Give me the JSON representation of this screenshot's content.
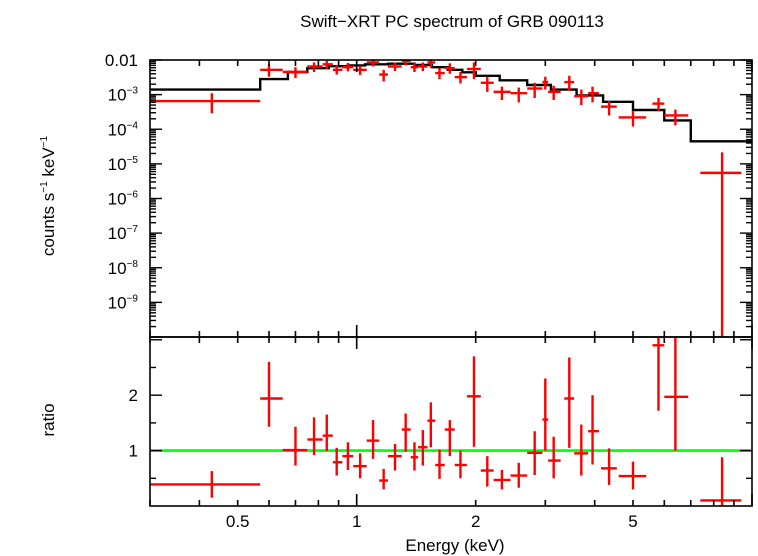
{
  "chart_data": [
    {
      "type": "scatter",
      "panel": "spectrum",
      "title": "Swift−XRT PC spectrum of GRB 090113",
      "ylabel_parts": [
        "counts s",
        "−1",
        " keV",
        "−1"
      ],
      "xscale": "log",
      "yscale": "log",
      "xlim": [
        0.3,
        10
      ],
      "ylim": [
        1e-10,
        0.01
      ],
      "yticks": [
        {
          "v": 0.01,
          "base": "0.01",
          "exp": ""
        },
        {
          "v": 0.001,
          "base": "10",
          "exp": "−3"
        },
        {
          "v": 0.0001,
          "base": "10",
          "exp": "−4"
        },
        {
          "v": 1e-05,
          "base": "10",
          "exp": "−5"
        },
        {
          "v": 1e-06,
          "base": "10",
          "exp": "−6"
        },
        {
          "v": 1e-07,
          "base": "10",
          "exp": "−7"
        },
        {
          "v": 1e-08,
          "base": "10",
          "exp": "−8"
        },
        {
          "v": 1e-09,
          "base": "10",
          "exp": "−9"
        }
      ],
      "data_color": "#ff0000",
      "model_color": "#000000",
      "model_step": [
        {
          "x0": 0.3,
          "x1": 0.57,
          "y": 0.0014
        },
        {
          "x0": 0.57,
          "x1": 0.67,
          "y": 0.0028
        },
        {
          "x0": 0.67,
          "x1": 0.75,
          "y": 0.0045
        },
        {
          "x0": 0.75,
          "x1": 0.85,
          "y": 0.0058
        },
        {
          "x0": 0.85,
          "x1": 0.95,
          "y": 0.0066
        },
        {
          "x0": 0.95,
          "x1": 1.05,
          "y": 0.007
        },
        {
          "x0": 1.05,
          "x1": 1.2,
          "y": 0.0075
        },
        {
          "x0": 1.2,
          "x1": 1.4,
          "y": 0.0078
        },
        {
          "x0": 1.4,
          "x1": 1.55,
          "y": 0.0072
        },
        {
          "x0": 1.55,
          "x1": 1.7,
          "y": 0.0062
        },
        {
          "x0": 1.7,
          "x1": 1.85,
          "y": 0.0052
        },
        {
          "x0": 1.85,
          "x1": 2.0,
          "y": 0.0044
        },
        {
          "x0": 2.0,
          "x1": 2.3,
          "y": 0.0035
        },
        {
          "x0": 2.3,
          "x1": 2.7,
          "y": 0.0026
        },
        {
          "x0": 2.7,
          "x1": 3.1,
          "y": 0.0019
        },
        {
          "x0": 3.1,
          "x1": 3.6,
          "y": 0.0014
        },
        {
          "x0": 3.6,
          "x1": 4.2,
          "y": 0.00095
        },
        {
          "x0": 4.2,
          "x1": 5.0,
          "y": 0.00062
        },
        {
          "x0": 5.0,
          "x1": 6.0,
          "y": 0.00036
        },
        {
          "x0": 6.0,
          "x1": 7.0,
          "y": 0.00018
        },
        {
          "x0": 7.0,
          "x1": 10.0,
          "y": 4.5e-05
        }
      ],
      "points": [
        {
          "x": 0.43,
          "xlo": 0.3,
          "xhi": 0.57,
          "y": 0.00065,
          "ylo": 0.00029,
          "yhi": 0.0011
        },
        {
          "x": 0.6,
          "xlo": 0.57,
          "xhi": 0.65,
          "y": 0.0052,
          "ylo": 0.0033,
          "yhi": 0.0075
        },
        {
          "x": 0.7,
          "xlo": 0.65,
          "xhi": 0.75,
          "y": 0.0045,
          "ylo": 0.003,
          "yhi": 0.0062
        },
        {
          "x": 0.78,
          "xlo": 0.75,
          "xhi": 0.82,
          "y": 0.0065,
          "ylo": 0.0045,
          "yhi": 0.0085
        },
        {
          "x": 0.84,
          "xlo": 0.82,
          "xhi": 0.87,
          "y": 0.0075,
          "ylo": 0.0055,
          "yhi": 0.0095
        },
        {
          "x": 0.89,
          "xlo": 0.87,
          "xhi": 0.92,
          "y": 0.0052,
          "ylo": 0.0038,
          "yhi": 0.0072
        },
        {
          "x": 0.95,
          "xlo": 0.92,
          "xhi": 0.98,
          "y": 0.0062,
          "ylo": 0.0047,
          "yhi": 0.0082
        },
        {
          "x": 1.02,
          "xlo": 0.98,
          "xhi": 1.06,
          "y": 0.0052,
          "ylo": 0.0037,
          "yhi": 0.0068
        },
        {
          "x": 1.1,
          "xlo": 1.06,
          "xhi": 1.14,
          "y": 0.0085,
          "ylo": 0.0065,
          "yhi": 0.0105
        },
        {
          "x": 1.17,
          "xlo": 1.14,
          "xhi": 1.2,
          "y": 0.0038,
          "ylo": 0.0024,
          "yhi": 0.0052
        },
        {
          "x": 1.25,
          "xlo": 1.2,
          "xhi": 1.3,
          "y": 0.0065,
          "ylo": 0.0048,
          "yhi": 0.0085
        },
        {
          "x": 1.33,
          "xlo": 1.3,
          "xhi": 1.37,
          "y": 0.0095,
          "ylo": 0.007,
          "yhi": 0.0115
        },
        {
          "x": 1.4,
          "xlo": 1.37,
          "xhi": 1.43,
          "y": 0.0062,
          "ylo": 0.0045,
          "yhi": 0.0082
        },
        {
          "x": 1.47,
          "xlo": 1.43,
          "xhi": 1.51,
          "y": 0.0065,
          "ylo": 0.0048,
          "yhi": 0.0085
        },
        {
          "x": 1.54,
          "xlo": 1.51,
          "xhi": 1.58,
          "y": 0.0085,
          "ylo": 0.006,
          "yhi": 0.011
        },
        {
          "x": 1.62,
          "xlo": 1.58,
          "xhi": 1.67,
          "y": 0.0042,
          "ylo": 0.0028,
          "yhi": 0.0058
        },
        {
          "x": 1.72,
          "xlo": 1.67,
          "xhi": 1.77,
          "y": 0.0058,
          "ylo": 0.004,
          "yhi": 0.008
        },
        {
          "x": 1.83,
          "xlo": 1.77,
          "xhi": 1.9,
          "y": 0.0032,
          "ylo": 0.0021,
          "yhi": 0.0045
        },
        {
          "x": 1.98,
          "xlo": 1.9,
          "xhi": 2.06,
          "y": 0.0055,
          "ylo": 0.0028,
          "yhi": 0.0085
        },
        {
          "x": 2.14,
          "xlo": 2.06,
          "xhi": 2.22,
          "y": 0.0022,
          "ylo": 0.0012,
          "yhi": 0.0033
        },
        {
          "x": 2.33,
          "xlo": 2.22,
          "xhi": 2.45,
          "y": 0.0012,
          "ylo": 0.0007,
          "yhi": 0.0017
        },
        {
          "x": 2.57,
          "xlo": 2.45,
          "xhi": 2.7,
          "y": 0.0011,
          "ylo": 0.0006,
          "yhi": 0.0016
        },
        {
          "x": 2.82,
          "xlo": 2.7,
          "xhi": 2.95,
          "y": 0.0015,
          "ylo": 0.0008,
          "yhi": 0.0022
        },
        {
          "x": 3.0,
          "xlo": 2.95,
          "xhi": 3.05,
          "y": 0.0023,
          "ylo": 0.0014,
          "yhi": 0.0033
        },
        {
          "x": 3.15,
          "xlo": 3.05,
          "xhi": 3.28,
          "y": 0.0012,
          "ylo": 0.0007,
          "yhi": 0.0018
        },
        {
          "x": 3.45,
          "xlo": 3.35,
          "xhi": 3.55,
          "y": 0.0023,
          "ylo": 0.0013,
          "yhi": 0.0035
        },
        {
          "x": 3.7,
          "xlo": 3.55,
          "xhi": 3.85,
          "y": 0.0009,
          "ylo": 0.0005,
          "yhi": 0.0014
        },
        {
          "x": 3.95,
          "xlo": 3.85,
          "xhi": 4.1,
          "y": 0.0011,
          "ylo": 0.0006,
          "yhi": 0.0017
        },
        {
          "x": 4.35,
          "xlo": 4.15,
          "xhi": 4.55,
          "y": 0.00045,
          "ylo": 0.00025,
          "yhi": 0.00065
        },
        {
          "x": 5.0,
          "xlo": 4.6,
          "xhi": 5.4,
          "y": 0.00022,
          "ylo": 0.00012,
          "yhi": 0.00033
        },
        {
          "x": 5.8,
          "xlo": 5.6,
          "xhi": 6.0,
          "y": 0.00055,
          "ylo": 0.00033,
          "yhi": 0.0008
        },
        {
          "x": 6.4,
          "xlo": 6.0,
          "xhi": 6.9,
          "y": 0.00025,
          "ylo": 0.00013,
          "yhi": 0.00037
        },
        {
          "x": 8.4,
          "xlo": 7.4,
          "xhi": 9.4,
          "y": 5.5e-06,
          "ylo": 1e-10,
          "yhi": 2.15e-05
        }
      ]
    },
    {
      "type": "scatter",
      "panel": "ratio",
      "xlabel": "Energy (keV)",
      "ylabel": "ratio",
      "xscale": "log",
      "xlim": [
        0.3,
        10
      ],
      "ylim": [
        0,
        3.05
      ],
      "xticks": [
        {
          "v": 0.5,
          "label": "0.5"
        },
        {
          "v": 1,
          "label": "1"
        },
        {
          "v": 2,
          "label": "2"
        },
        {
          "v": 5,
          "label": "5"
        }
      ],
      "yticks": [
        {
          "v": 1,
          "label": "1"
        },
        {
          "v": 2,
          "label": "2"
        }
      ],
      "reference_line": {
        "y": 1,
        "color": "#00ff00"
      },
      "data_color": "#ff0000",
      "points": [
        {
          "x": 0.43,
          "xlo": 0.3,
          "xhi": 0.57,
          "y": 0.39,
          "ylo": 0.15,
          "yhi": 0.63
        },
        {
          "x": 0.6,
          "xlo": 0.57,
          "xhi": 0.65,
          "y": 1.94,
          "ylo": 1.43,
          "yhi": 2.6
        },
        {
          "x": 0.7,
          "xlo": 0.65,
          "xhi": 0.75,
          "y": 1.01,
          "ylo": 0.73,
          "yhi": 1.43
        },
        {
          "x": 0.78,
          "xlo": 0.75,
          "xhi": 0.82,
          "y": 1.2,
          "ylo": 0.92,
          "yhi": 1.6
        },
        {
          "x": 0.84,
          "xlo": 0.82,
          "xhi": 0.87,
          "y": 1.27,
          "ylo": 0.99,
          "yhi": 1.65
        },
        {
          "x": 0.89,
          "xlo": 0.87,
          "xhi": 0.92,
          "y": 0.79,
          "ylo": 0.55,
          "yhi": 1.05
        },
        {
          "x": 0.95,
          "xlo": 0.92,
          "xhi": 0.98,
          "y": 0.9,
          "ylo": 0.65,
          "yhi": 1.15
        },
        {
          "x": 1.02,
          "xlo": 0.98,
          "xhi": 1.06,
          "y": 0.72,
          "ylo": 0.5,
          "yhi": 0.95
        },
        {
          "x": 1.1,
          "xlo": 1.06,
          "xhi": 1.14,
          "y": 1.18,
          "ylo": 0.85,
          "yhi": 1.55
        },
        {
          "x": 1.17,
          "xlo": 1.14,
          "xhi": 1.2,
          "y": 0.46,
          "ylo": 0.3,
          "yhi": 0.67
        },
        {
          "x": 1.25,
          "xlo": 1.2,
          "xhi": 1.3,
          "y": 0.9,
          "ylo": 0.64,
          "yhi": 1.12
        },
        {
          "x": 1.33,
          "xlo": 1.3,
          "xhi": 1.37,
          "y": 1.38,
          "ylo": 0.98,
          "yhi": 1.67
        },
        {
          "x": 1.4,
          "xlo": 1.37,
          "xhi": 1.43,
          "y": 0.88,
          "ylo": 0.64,
          "yhi": 1.15
        },
        {
          "x": 1.47,
          "xlo": 1.43,
          "xhi": 1.51,
          "y": 1.06,
          "ylo": 0.73,
          "yhi": 1.37
        },
        {
          "x": 1.54,
          "xlo": 1.51,
          "xhi": 1.58,
          "y": 1.54,
          "ylo": 1.06,
          "yhi": 1.87
        },
        {
          "x": 1.62,
          "xlo": 1.58,
          "xhi": 1.67,
          "y": 0.74,
          "ylo": 0.49,
          "yhi": 1.02
        },
        {
          "x": 1.72,
          "xlo": 1.67,
          "xhi": 1.77,
          "y": 1.38,
          "ylo": 0.9,
          "yhi": 1.55
        },
        {
          "x": 1.83,
          "xlo": 1.77,
          "xhi": 1.9,
          "y": 0.74,
          "ylo": 0.5,
          "yhi": 1.0
        },
        {
          "x": 1.98,
          "xlo": 1.9,
          "xhi": 2.06,
          "y": 1.98,
          "ylo": 1.07,
          "yhi": 2.7
        },
        {
          "x": 2.14,
          "xlo": 2.06,
          "xhi": 2.22,
          "y": 0.64,
          "ylo": 0.35,
          "yhi": 0.9
        },
        {
          "x": 2.33,
          "xlo": 2.22,
          "xhi": 2.45,
          "y": 0.47,
          "ylo": 0.3,
          "yhi": 0.65
        },
        {
          "x": 2.57,
          "xlo": 2.45,
          "xhi": 2.7,
          "y": 0.55,
          "ylo": 0.33,
          "yhi": 0.78
        },
        {
          "x": 2.82,
          "xlo": 2.7,
          "xhi": 2.95,
          "y": 0.96,
          "ylo": 0.56,
          "yhi": 1.35
        },
        {
          "x": 3.0,
          "xlo": 2.95,
          "xhi": 3.05,
          "y": 1.56,
          "ylo": 1.0,
          "yhi": 2.3
        },
        {
          "x": 3.15,
          "xlo": 3.05,
          "xhi": 3.28,
          "y": 0.82,
          "ylo": 0.5,
          "yhi": 1.25
        },
        {
          "x": 3.45,
          "xlo": 3.35,
          "xhi": 3.55,
          "y": 1.94,
          "ylo": 1.05,
          "yhi": 2.68
        },
        {
          "x": 3.7,
          "xlo": 3.55,
          "xhi": 3.85,
          "y": 0.95,
          "ylo": 0.55,
          "yhi": 1.47
        },
        {
          "x": 3.95,
          "xlo": 3.85,
          "xhi": 4.1,
          "y": 1.35,
          "ylo": 0.75,
          "yhi": 2.0
        },
        {
          "x": 4.35,
          "xlo": 4.15,
          "xhi": 4.55,
          "y": 0.68,
          "ylo": 0.38,
          "yhi": 1.04
        },
        {
          "x": 5.0,
          "xlo": 4.6,
          "xhi": 5.4,
          "y": 0.54,
          "ylo": 0.3,
          "yhi": 0.8
        },
        {
          "x": 5.8,
          "xlo": 5.6,
          "xhi": 6.0,
          "y": 2.9,
          "ylo": 1.72,
          "yhi": 3.05
        },
        {
          "x": 6.4,
          "xlo": 6.0,
          "xhi": 6.9,
          "y": 1.97,
          "ylo": 1.0,
          "yhi": 3.05
        },
        {
          "x": 8.4,
          "xlo": 7.4,
          "xhi": 9.4,
          "y": 0.1,
          "ylo": 0.0,
          "yhi": 0.88
        }
      ]
    }
  ]
}
